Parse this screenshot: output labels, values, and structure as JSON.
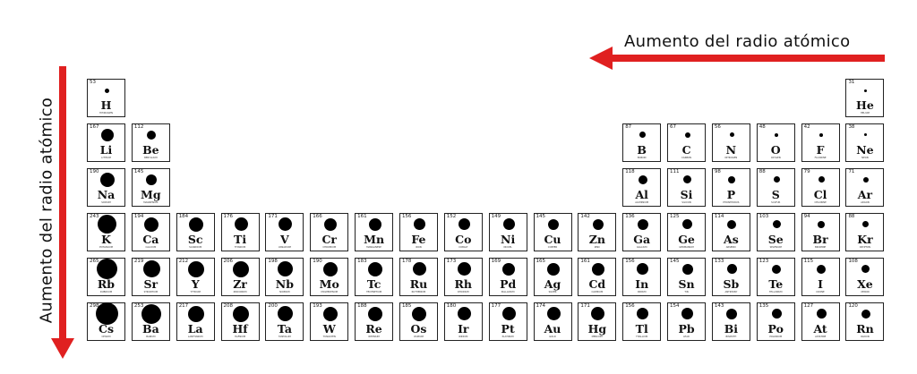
{
  "colors": {
    "arrow": "#e02020",
    "atom": "#000000",
    "border": "#222222"
  },
  "horizontal_label": "Aumento del radio atómico",
  "vertical_label": "Aumento del radio atómico",
  "elements": [
    {
      "symbol": "H",
      "name": "Hydrogen",
      "radius": 53,
      "period": 1,
      "group": 1
    },
    {
      "symbol": "He",
      "name": "Helium",
      "radius": 31,
      "period": 1,
      "group": 18
    },
    {
      "symbol": "Li",
      "name": "Lithium",
      "radius": 167,
      "period": 2,
      "group": 1
    },
    {
      "symbol": "Be",
      "name": "Beryllium",
      "radius": 112,
      "period": 2,
      "group": 2
    },
    {
      "symbol": "B",
      "name": "Boron",
      "radius": 87,
      "period": 2,
      "group": 13
    },
    {
      "symbol": "C",
      "name": "Carbon",
      "radius": 67,
      "period": 2,
      "group": 14
    },
    {
      "symbol": "N",
      "name": "Nitrogen",
      "radius": 56,
      "period": 2,
      "group": 15
    },
    {
      "symbol": "O",
      "name": "Oxygen",
      "radius": 48,
      "period": 2,
      "group": 16
    },
    {
      "symbol": "F",
      "name": "Fluorine",
      "radius": 42,
      "period": 2,
      "group": 17
    },
    {
      "symbol": "Ne",
      "name": "Neon",
      "radius": 38,
      "period": 2,
      "group": 18
    },
    {
      "symbol": "Na",
      "name": "Sodium",
      "radius": 190,
      "period": 3,
      "group": 1
    },
    {
      "symbol": "Mg",
      "name": "Magnesium",
      "radius": 145,
      "period": 3,
      "group": 2
    },
    {
      "symbol": "Al",
      "name": "Aluminium",
      "radius": 118,
      "period": 3,
      "group": 13
    },
    {
      "symbol": "Si",
      "name": "Silicon",
      "radius": 111,
      "period": 3,
      "group": 14
    },
    {
      "symbol": "P",
      "name": "Phosphorus",
      "radius": 98,
      "period": 3,
      "group": 15
    },
    {
      "symbol": "S",
      "name": "Sulfur",
      "radius": 88,
      "period": 3,
      "group": 16
    },
    {
      "symbol": "Cl",
      "name": "Chlorine",
      "radius": 79,
      "period": 3,
      "group": 17
    },
    {
      "symbol": "Ar",
      "name": "Argon",
      "radius": 71,
      "period": 3,
      "group": 18
    },
    {
      "symbol": "K",
      "name": "Potassium",
      "radius": 243,
      "period": 4,
      "group": 1
    },
    {
      "symbol": "Ca",
      "name": "Calcium",
      "radius": 194,
      "period": 4,
      "group": 2
    },
    {
      "symbol": "Sc",
      "name": "Scandium",
      "radius": 184,
      "period": 4,
      "group": 3
    },
    {
      "symbol": "Ti",
      "name": "Titanium",
      "radius": 176,
      "period": 4,
      "group": 4
    },
    {
      "symbol": "V",
      "name": "Vanadium",
      "radius": 171,
      "period": 4,
      "group": 5
    },
    {
      "symbol": "Cr",
      "name": "Chromium",
      "radius": 166,
      "period": 4,
      "group": 6
    },
    {
      "symbol": "Mn",
      "name": "Manganese",
      "radius": 161,
      "period": 4,
      "group": 7
    },
    {
      "symbol": "Fe",
      "name": "Iron",
      "radius": 156,
      "period": 4,
      "group": 8
    },
    {
      "symbol": "Co",
      "name": "Cobalt",
      "radius": 152,
      "period": 4,
      "group": 9
    },
    {
      "symbol": "Ni",
      "name": "Nickel",
      "radius": 149,
      "period": 4,
      "group": 10
    },
    {
      "symbol": "Cu",
      "name": "Copper",
      "radius": 145,
      "period": 4,
      "group": 11
    },
    {
      "symbol": "Zn",
      "name": "Zinc",
      "radius": 142,
      "period": 4,
      "group": 12
    },
    {
      "symbol": "Ga",
      "name": "Gallium",
      "radius": 136,
      "period": 4,
      "group": 13
    },
    {
      "symbol": "Ge",
      "name": "Germanium",
      "radius": 125,
      "period": 4,
      "group": 14
    },
    {
      "symbol": "As",
      "name": "Arsenic",
      "radius": 114,
      "period": 4,
      "group": 15
    },
    {
      "symbol": "Se",
      "name": "Selenium",
      "radius": 103,
      "period": 4,
      "group": 16
    },
    {
      "symbol": "Br",
      "name": "Bromine",
      "radius": 94,
      "period": 4,
      "group": 17
    },
    {
      "symbol": "Kr",
      "name": "Krypton",
      "radius": 88,
      "period": 4,
      "group": 18
    },
    {
      "symbol": "Rb",
      "name": "Rubidium",
      "radius": 265,
      "period": 5,
      "group": 1
    },
    {
      "symbol": "Sr",
      "name": "Strontium",
      "radius": 219,
      "period": 5,
      "group": 2
    },
    {
      "symbol": "Y",
      "name": "Yttrium",
      "radius": 212,
      "period": 5,
      "group": 3
    },
    {
      "symbol": "Zr",
      "name": "Zirconium",
      "radius": 206,
      "period": 5,
      "group": 4
    },
    {
      "symbol": "Nb",
      "name": "Niobium",
      "radius": 198,
      "period": 5,
      "group": 5
    },
    {
      "symbol": "Mo",
      "name": "Molybdenum",
      "radius": 190,
      "period": 5,
      "group": 6
    },
    {
      "symbol": "Tc",
      "name": "Technetium",
      "radius": 183,
      "period": 5,
      "group": 7
    },
    {
      "symbol": "Ru",
      "name": "Ruthenium",
      "radius": 178,
      "period": 5,
      "group": 8
    },
    {
      "symbol": "Rh",
      "name": "Rhodium",
      "radius": 173,
      "period": 5,
      "group": 9
    },
    {
      "symbol": "Pd",
      "name": "Palladium",
      "radius": 169,
      "period": 5,
      "group": 10
    },
    {
      "symbol": "Ag",
      "name": "Silver",
      "radius": 165,
      "period": 5,
      "group": 11
    },
    {
      "symbol": "Cd",
      "name": "Cadmium",
      "radius": 161,
      "period": 5,
      "group": 12
    },
    {
      "symbol": "In",
      "name": "Indium",
      "radius": 156,
      "period": 5,
      "group": 13
    },
    {
      "symbol": "Sn",
      "name": "Tin",
      "radius": 145,
      "period": 5,
      "group": 14
    },
    {
      "symbol": "Sb",
      "name": "Antimony",
      "radius": 133,
      "period": 5,
      "group": 15
    },
    {
      "symbol": "Te",
      "name": "Tellurium",
      "radius": 123,
      "period": 5,
      "group": 16
    },
    {
      "symbol": "I",
      "name": "Iodine",
      "radius": 115,
      "period": 5,
      "group": 17
    },
    {
      "symbol": "Xe",
      "name": "Xenon",
      "radius": 108,
      "period": 5,
      "group": 18
    },
    {
      "symbol": "Cs",
      "name": "Cesium",
      "radius": 298,
      "period": 6,
      "group": 1
    },
    {
      "symbol": "Ba",
      "name": "Barium",
      "radius": 253,
      "period": 6,
      "group": 2
    },
    {
      "symbol": "La",
      "name": "Lanthanum",
      "radius": 217,
      "period": 6,
      "group": 3
    },
    {
      "symbol": "Hf",
      "name": "Hafnium",
      "radius": 208,
      "period": 6,
      "group": 4
    },
    {
      "symbol": "Ta",
      "name": "Tantalum",
      "radius": 200,
      "period": 6,
      "group": 5
    },
    {
      "symbol": "W",
      "name": "Tungsten",
      "radius": 193,
      "period": 6,
      "group": 6
    },
    {
      "symbol": "Re",
      "name": "Rhenium",
      "radius": 188,
      "period": 6,
      "group": 7
    },
    {
      "symbol": "Os",
      "name": "Osmium",
      "radius": 185,
      "period": 6,
      "group": 8
    },
    {
      "symbol": "Ir",
      "name": "Iridium",
      "radius": 180,
      "period": 6,
      "group": 9
    },
    {
      "symbol": "Pt",
      "name": "Platinum",
      "radius": 177,
      "period": 6,
      "group": 10
    },
    {
      "symbol": "Au",
      "name": "Gold",
      "radius": 174,
      "period": 6,
      "group": 11
    },
    {
      "symbol": "Hg",
      "name": "Mercury",
      "radius": 171,
      "period": 6,
      "group": 12
    },
    {
      "symbol": "Tl",
      "name": "Thallium",
      "radius": 156,
      "period": 6,
      "group": 13
    },
    {
      "symbol": "Pb",
      "name": "Lead",
      "radius": 154,
      "period": 6,
      "group": 14
    },
    {
      "symbol": "Bi",
      "name": "Bismuth",
      "radius": 143,
      "period": 6,
      "group": 15
    },
    {
      "symbol": "Po",
      "name": "Polonium",
      "radius": 135,
      "period": 6,
      "group": 16
    },
    {
      "symbol": "At",
      "name": "Astatine",
      "radius": 127,
      "period": 6,
      "group": 17
    },
    {
      "symbol": "Rn",
      "name": "Radon",
      "radius": 120,
      "period": 6,
      "group": 18
    }
  ]
}
